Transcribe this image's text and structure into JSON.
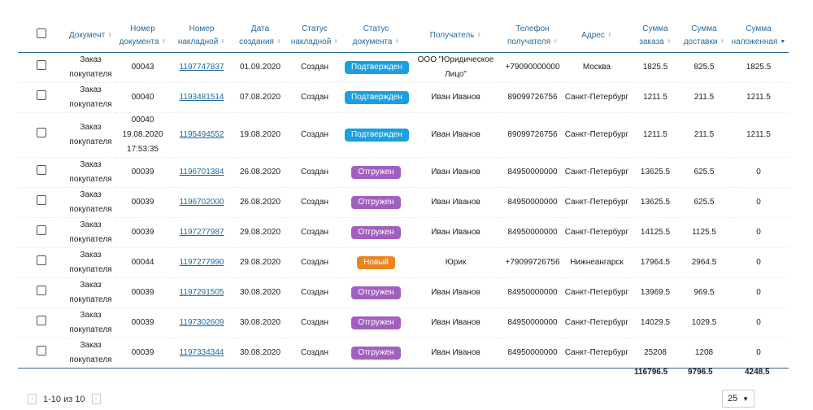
{
  "columns": [
    "Документ",
    "Номер документа",
    "Номер накладной",
    "Дата создания",
    "Статус накладной",
    "Статус документа",
    "Получатель",
    "Телефон получателя",
    "Адрес",
    "Сумма заказа",
    "Сумма доставки",
    "Сумма наложенная"
  ],
  "status_colors": {
    "Подтвержден": "#1a9fe0",
    "Отгружен": "#a25fbf",
    "Новый": "#e9841e"
  },
  "rows": [
    {
      "doc": "Заказ покупателя",
      "num": "00043",
      "nakl": "1197747837",
      "date": "01.09.2020",
      "nakl_status": "Создан",
      "doc_status": "Подтвержден",
      "recipient": "ООО \"Юридическое Лицо\"",
      "phone": "+79090000000",
      "address": "Москва",
      "sum": "1825.5",
      "delivery": "825.5",
      "cod": "1825.5"
    },
    {
      "doc": "Заказ покупателя",
      "num": "00040",
      "nakl": "1193481514",
      "date": "07.08.2020",
      "nakl_status": "Создан",
      "doc_status": "Подтвержден",
      "recipient": "Иван Иванов",
      "phone": "89099726756",
      "address": "Санкт-Петербург",
      "sum": "1211.5",
      "delivery": "211.5",
      "cod": "1211.5"
    },
    {
      "doc": "Заказ покупателя",
      "num": "00040 19.08.2020 17:53:35",
      "nakl": "1195494552",
      "date": "19.08.2020",
      "nakl_status": "Создан",
      "doc_status": "Подтвержден",
      "recipient": "Иван Иванов",
      "phone": "89099726756",
      "address": "Санкт-Петербург",
      "sum": "1211.5",
      "delivery": "211.5",
      "cod": "1211.5"
    },
    {
      "doc": "Заказ покупателя",
      "num": "00039",
      "nakl": "1196701384",
      "date": "26.08.2020",
      "nakl_status": "Создан",
      "doc_status": "Отгружен",
      "recipient": "Иван Иванов",
      "phone": "84950000000",
      "address": "Санкт-Петербург",
      "sum": "13625.5",
      "delivery": "625.5",
      "cod": "0"
    },
    {
      "doc": "Заказ покупателя",
      "num": "00039",
      "nakl": "1196702000",
      "date": "26.08.2020",
      "nakl_status": "Создан",
      "doc_status": "Отгружен",
      "recipient": "Иван Иванов",
      "phone": "84950000000",
      "address": "Санкт-Петербург",
      "sum": "13625.5",
      "delivery": "625.5",
      "cod": "0"
    },
    {
      "doc": "Заказ покупателя",
      "num": "00039",
      "nakl": "1197277987",
      "date": "29.08.2020",
      "nakl_status": "Создан",
      "doc_status": "Отгружен",
      "recipient": "Иван Иванов",
      "phone": "84950000000",
      "address": "Санкт-Петербург",
      "sum": "14125.5",
      "delivery": "1125.5",
      "cod": "0"
    },
    {
      "doc": "Заказ покупателя",
      "num": "00044",
      "nakl": "1197277990",
      "date": "29.08.2020",
      "nakl_status": "Создан",
      "doc_status": "Новый",
      "recipient": "Юрик",
      "phone": "+79099726756",
      "address": "Нижнеангарск",
      "sum": "17964.5",
      "delivery": "2964.5",
      "cod": "0"
    },
    {
      "doc": "Заказ покупателя",
      "num": "00039",
      "nakl": "1197291505",
      "date": "30.08.2020",
      "nakl_status": "Создан",
      "doc_status": "Отгружен",
      "recipient": "Иван Иванов",
      "phone": "84950000000",
      "address": "Санкт-Петербург",
      "sum": "13969.5",
      "delivery": "969.5",
      "cod": "0"
    },
    {
      "doc": "Заказ покупателя",
      "num": "00039",
      "nakl": "1197302609",
      "date": "30.08.2020",
      "nakl_status": "Создан",
      "doc_status": "Отгружен",
      "recipient": "Иван Иванов",
      "phone": "84950000000",
      "address": "Санкт-Петербург",
      "sum": "14029.5",
      "delivery": "1029.5",
      "cod": "0"
    },
    {
      "doc": "Заказ покупателя",
      "num": "00039",
      "nakl": "1197334344",
      "date": "30.08.2020",
      "nakl_status": "Создан",
      "doc_status": "Отгружен",
      "recipient": "Иван Иванов",
      "phone": "84950000000",
      "address": "Санкт-Петербург",
      "sum": "25208",
      "delivery": "1208",
      "cod": "0"
    }
  ],
  "totals": {
    "sum": "116796.5",
    "delivery": "9796.5",
    "cod": "4248.5"
  },
  "pagination": {
    "range": "1-10 из 10",
    "page_size": "25"
  }
}
